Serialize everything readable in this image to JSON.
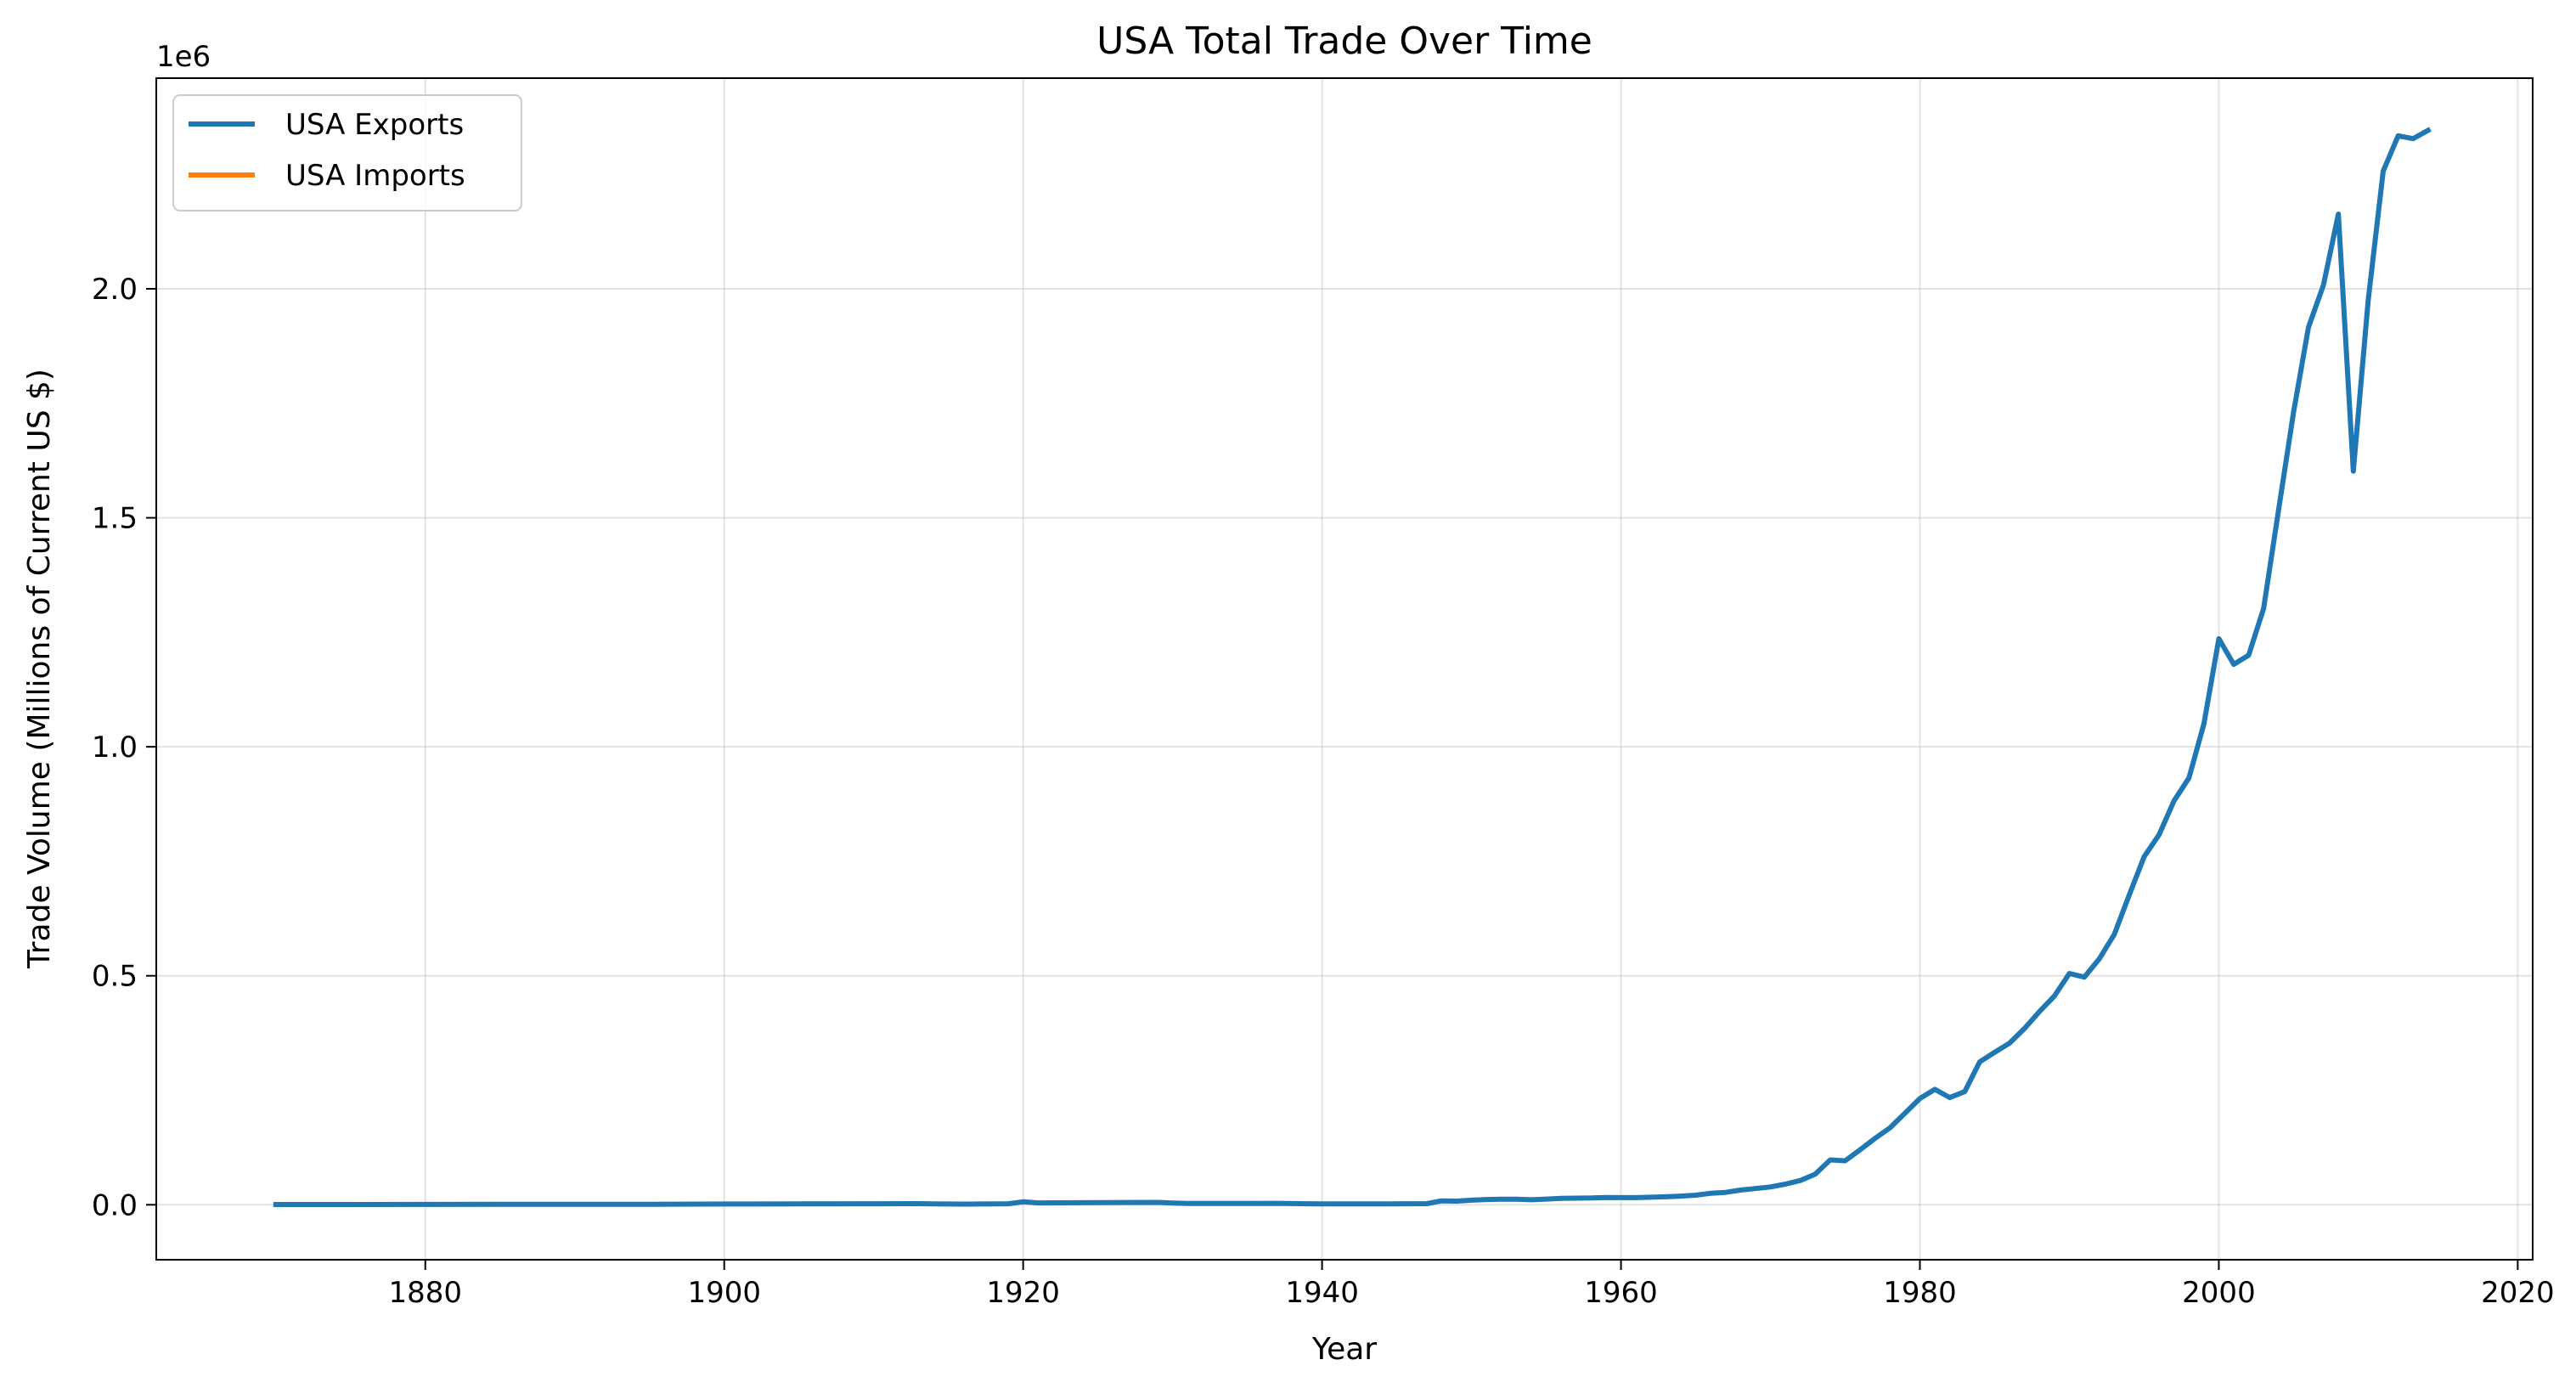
{
  "chart_data": {
    "type": "line",
    "title": "USA Total Trade Over Time",
    "xlabel": "Year",
    "ylabel": "Trade Volume (Millions of Current US $)",
    "y_offset_label": "1e6",
    "xlim": [
      1862,
      2021
    ],
    "ylim": [
      -120000,
      2460000
    ],
    "x_ticks": [
      1880,
      1900,
      1920,
      1940,
      1960,
      1980,
      2000,
      2020
    ],
    "x_tick_labels": [
      "1880",
      "1900",
      "1920",
      "1940",
      "1960",
      "1980",
      "2000",
      "2020"
    ],
    "y_ticks": [
      0,
      500000,
      1000000,
      1500000,
      2000000
    ],
    "y_tick_labels": [
      "0.0",
      "0.5",
      "1.0",
      "1.5",
      "2.0"
    ],
    "grid": true,
    "legend": "upper-left",
    "series": [
      {
        "name": "USA Exports",
        "color": "#1f77b4",
        "x": [
          1870,
          1875,
          1880,
          1885,
          1890,
          1895,
          1900,
          1905,
          1910,
          1912,
          1913,
          1914,
          1915,
          1916,
          1917,
          1918,
          1919,
          1920,
          1921,
          1925,
          1929,
          1930,
          1931,
          1935,
          1937,
          1938,
          1939,
          1940,
          1945,
          1947,
          1948,
          1949,
          1950,
          1951,
          1952,
          1953,
          1954,
          1955,
          1956,
          1957,
          1958,
          1959,
          1960,
          1961,
          1962,
          1963,
          1964,
          1965,
          1966,
          1967,
          1968,
          1969,
          1970,
          1971,
          1972,
          1973,
          1974,
          1975,
          1976,
          1977,
          1978,
          1979,
          1980,
          1981,
          1982,
          1983,
          1984,
          1985,
          1986,
          1987,
          1988,
          1989,
          1990,
          1991,
          1992,
          1993,
          1994,
          1995,
          1996,
          1997,
          1998,
          1999,
          2000,
          2001,
          2002,
          2003,
          2004,
          2005,
          2006,
          2007,
          2008,
          2009,
          2010,
          2011,
          2012,
          2013,
          2014
        ],
        "values": [
          500,
          600,
          700,
          900,
          1100,
          1200,
          1600,
          1800,
          2200,
          2500,
          2500,
          1800,
          1600,
          1500,
          1600,
          1800,
          2200,
          6500,
          4000,
          4800,
          5200,
          3800,
          2800,
          2800,
          3200,
          2600,
          2200,
          2000,
          2000,
          2500,
          8500,
          8000,
          10000,
          11500,
          12000,
          12000,
          11000,
          12500,
          14000,
          14500,
          14800,
          16000,
          15500,
          15500,
          16500,
          17500,
          19000,
          21000,
          25000,
          27000,
          32000,
          35500,
          39000,
          45000,
          53000,
          67000,
          98000,
          96000,
          120000,
          145000,
          168000,
          200000,
          232000,
          252000,
          234000,
          247000,
          312000,
          333000,
          353000,
          385000,
          422000,
          456000,
          505000,
          497000,
          537000,
          590000,
          676000,
          760000,
          808000,
          882000,
          932000,
          1050000,
          1236000,
          1180000,
          1200000,
          1302000,
          1517000,
          1730000,
          1916000,
          2008000,
          2163000,
          1602000,
          1976000,
          2257000,
          2334000,
          2328000,
          2346000
        ]
      },
      {
        "name": "USA Imports",
        "color": "#ff7f0e",
        "x": [],
        "values": []
      }
    ]
  }
}
